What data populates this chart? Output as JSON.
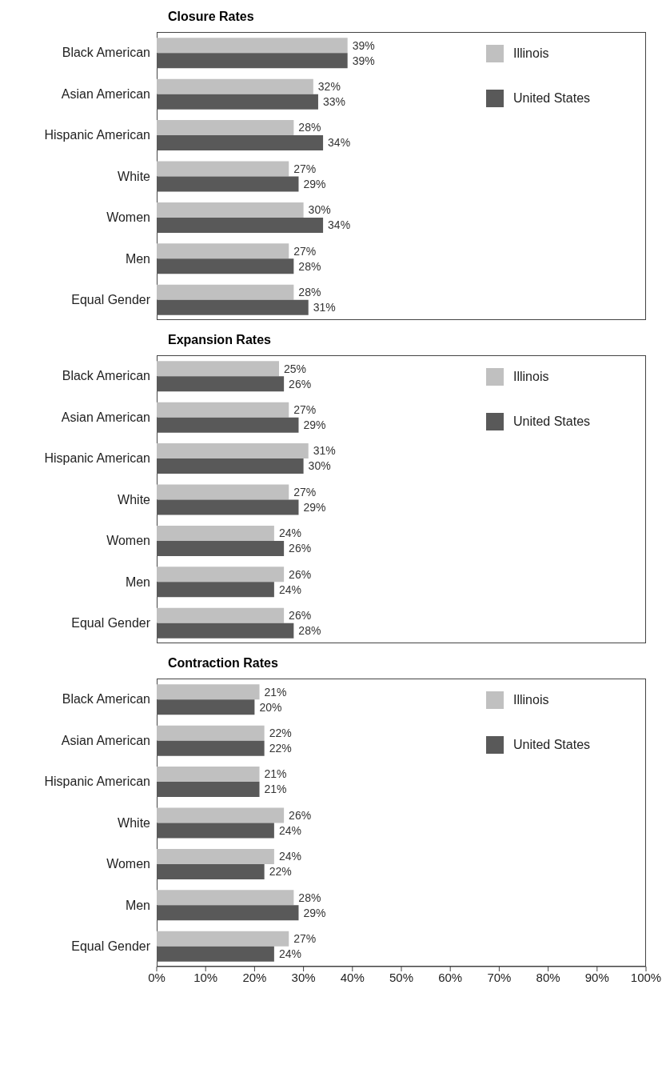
{
  "chart_data": [
    {
      "type": "bar",
      "orientation": "horizontal",
      "title": "Closure Rates",
      "categories": [
        "Black American",
        "Asian American",
        "Hispanic American",
        "White",
        "Women",
        "Men",
        "Equal Gender"
      ],
      "series": [
        {
          "name": "Illinois",
          "color": "#c0c0c0",
          "values": [
            39,
            32,
            28,
            27,
            30,
            27,
            28
          ],
          "value_labels": [
            "39%",
            "32%",
            "28%",
            "27%",
            "30%",
            "27%",
            "28%"
          ]
        },
        {
          "name": "United States",
          "color": "#595959",
          "values": [
            39,
            33,
            34,
            29,
            34,
            28,
            31
          ],
          "value_labels": [
            "39%",
            "33%",
            "34%",
            "29%",
            "34%",
            "28%",
            "31%"
          ]
        }
      ],
      "xlim": [
        0,
        100
      ],
      "legend": "top right",
      "tick_labels": "y"
    },
    {
      "type": "bar",
      "orientation": "horizontal",
      "title": "Expansion Rates",
      "categories": [
        "Black American",
        "Asian American",
        "Hispanic American",
        "White",
        "Women",
        "Men",
        "Equal Gender"
      ],
      "series": [
        {
          "name": "Illinois",
          "color": "#c0c0c0",
          "values": [
            25,
            27,
            31,
            27,
            24,
            26,
            26
          ],
          "value_labels": [
            "25%",
            "27%",
            "31%",
            "27%",
            "24%",
            "26%",
            "26%"
          ]
        },
        {
          "name": "United States",
          "color": "#595959",
          "values": [
            26,
            29,
            30,
            29,
            26,
            24,
            28
          ],
          "value_labels": [
            "26%",
            "29%",
            "30%",
            "29%",
            "26%",
            "24%",
            "28%"
          ]
        }
      ],
      "xlim": [
        0,
        100
      ],
      "legend": "top right",
      "tick_labels": "y"
    },
    {
      "type": "bar",
      "orientation": "horizontal",
      "title": "Contraction Rates",
      "categories": [
        "Black American",
        "Asian American",
        "Hispanic American",
        "White",
        "Women",
        "Men",
        "Equal Gender"
      ],
      "series": [
        {
          "name": "Illinois",
          "color": "#c0c0c0",
          "values": [
            21,
            22,
            21,
            26,
            24,
            28,
            27
          ],
          "value_labels": [
            "21%",
            "22%",
            "21%",
            "26%",
            "24%",
            "28%",
            "27%"
          ]
        },
        {
          "name": "United States",
          "color": "#595959",
          "values": [
            20,
            22,
            21,
            24,
            22,
            29,
            24
          ],
          "value_labels": [
            "20%",
            "22%",
            "21%",
            "24%",
            "22%",
            "29%",
            "24%"
          ]
        }
      ],
      "xlim": [
        0,
        100
      ],
      "xticks": [
        {
          "value": 0,
          "label": "0%"
        },
        {
          "value": 10,
          "label": "10%"
        },
        {
          "value": 20,
          "label": "20%"
        },
        {
          "value": 30,
          "label": "30%"
        },
        {
          "value": 40,
          "label": "40%"
        },
        {
          "value": 50,
          "label": "50%"
        },
        {
          "value": 60,
          "label": "60%"
        },
        {
          "value": 70,
          "label": "70%"
        },
        {
          "value": 80,
          "label": "80%"
        },
        {
          "value": 90,
          "label": "90%"
        },
        {
          "value": 100,
          "label": "100%"
        }
      ],
      "legend": "top right"
    }
  ]
}
